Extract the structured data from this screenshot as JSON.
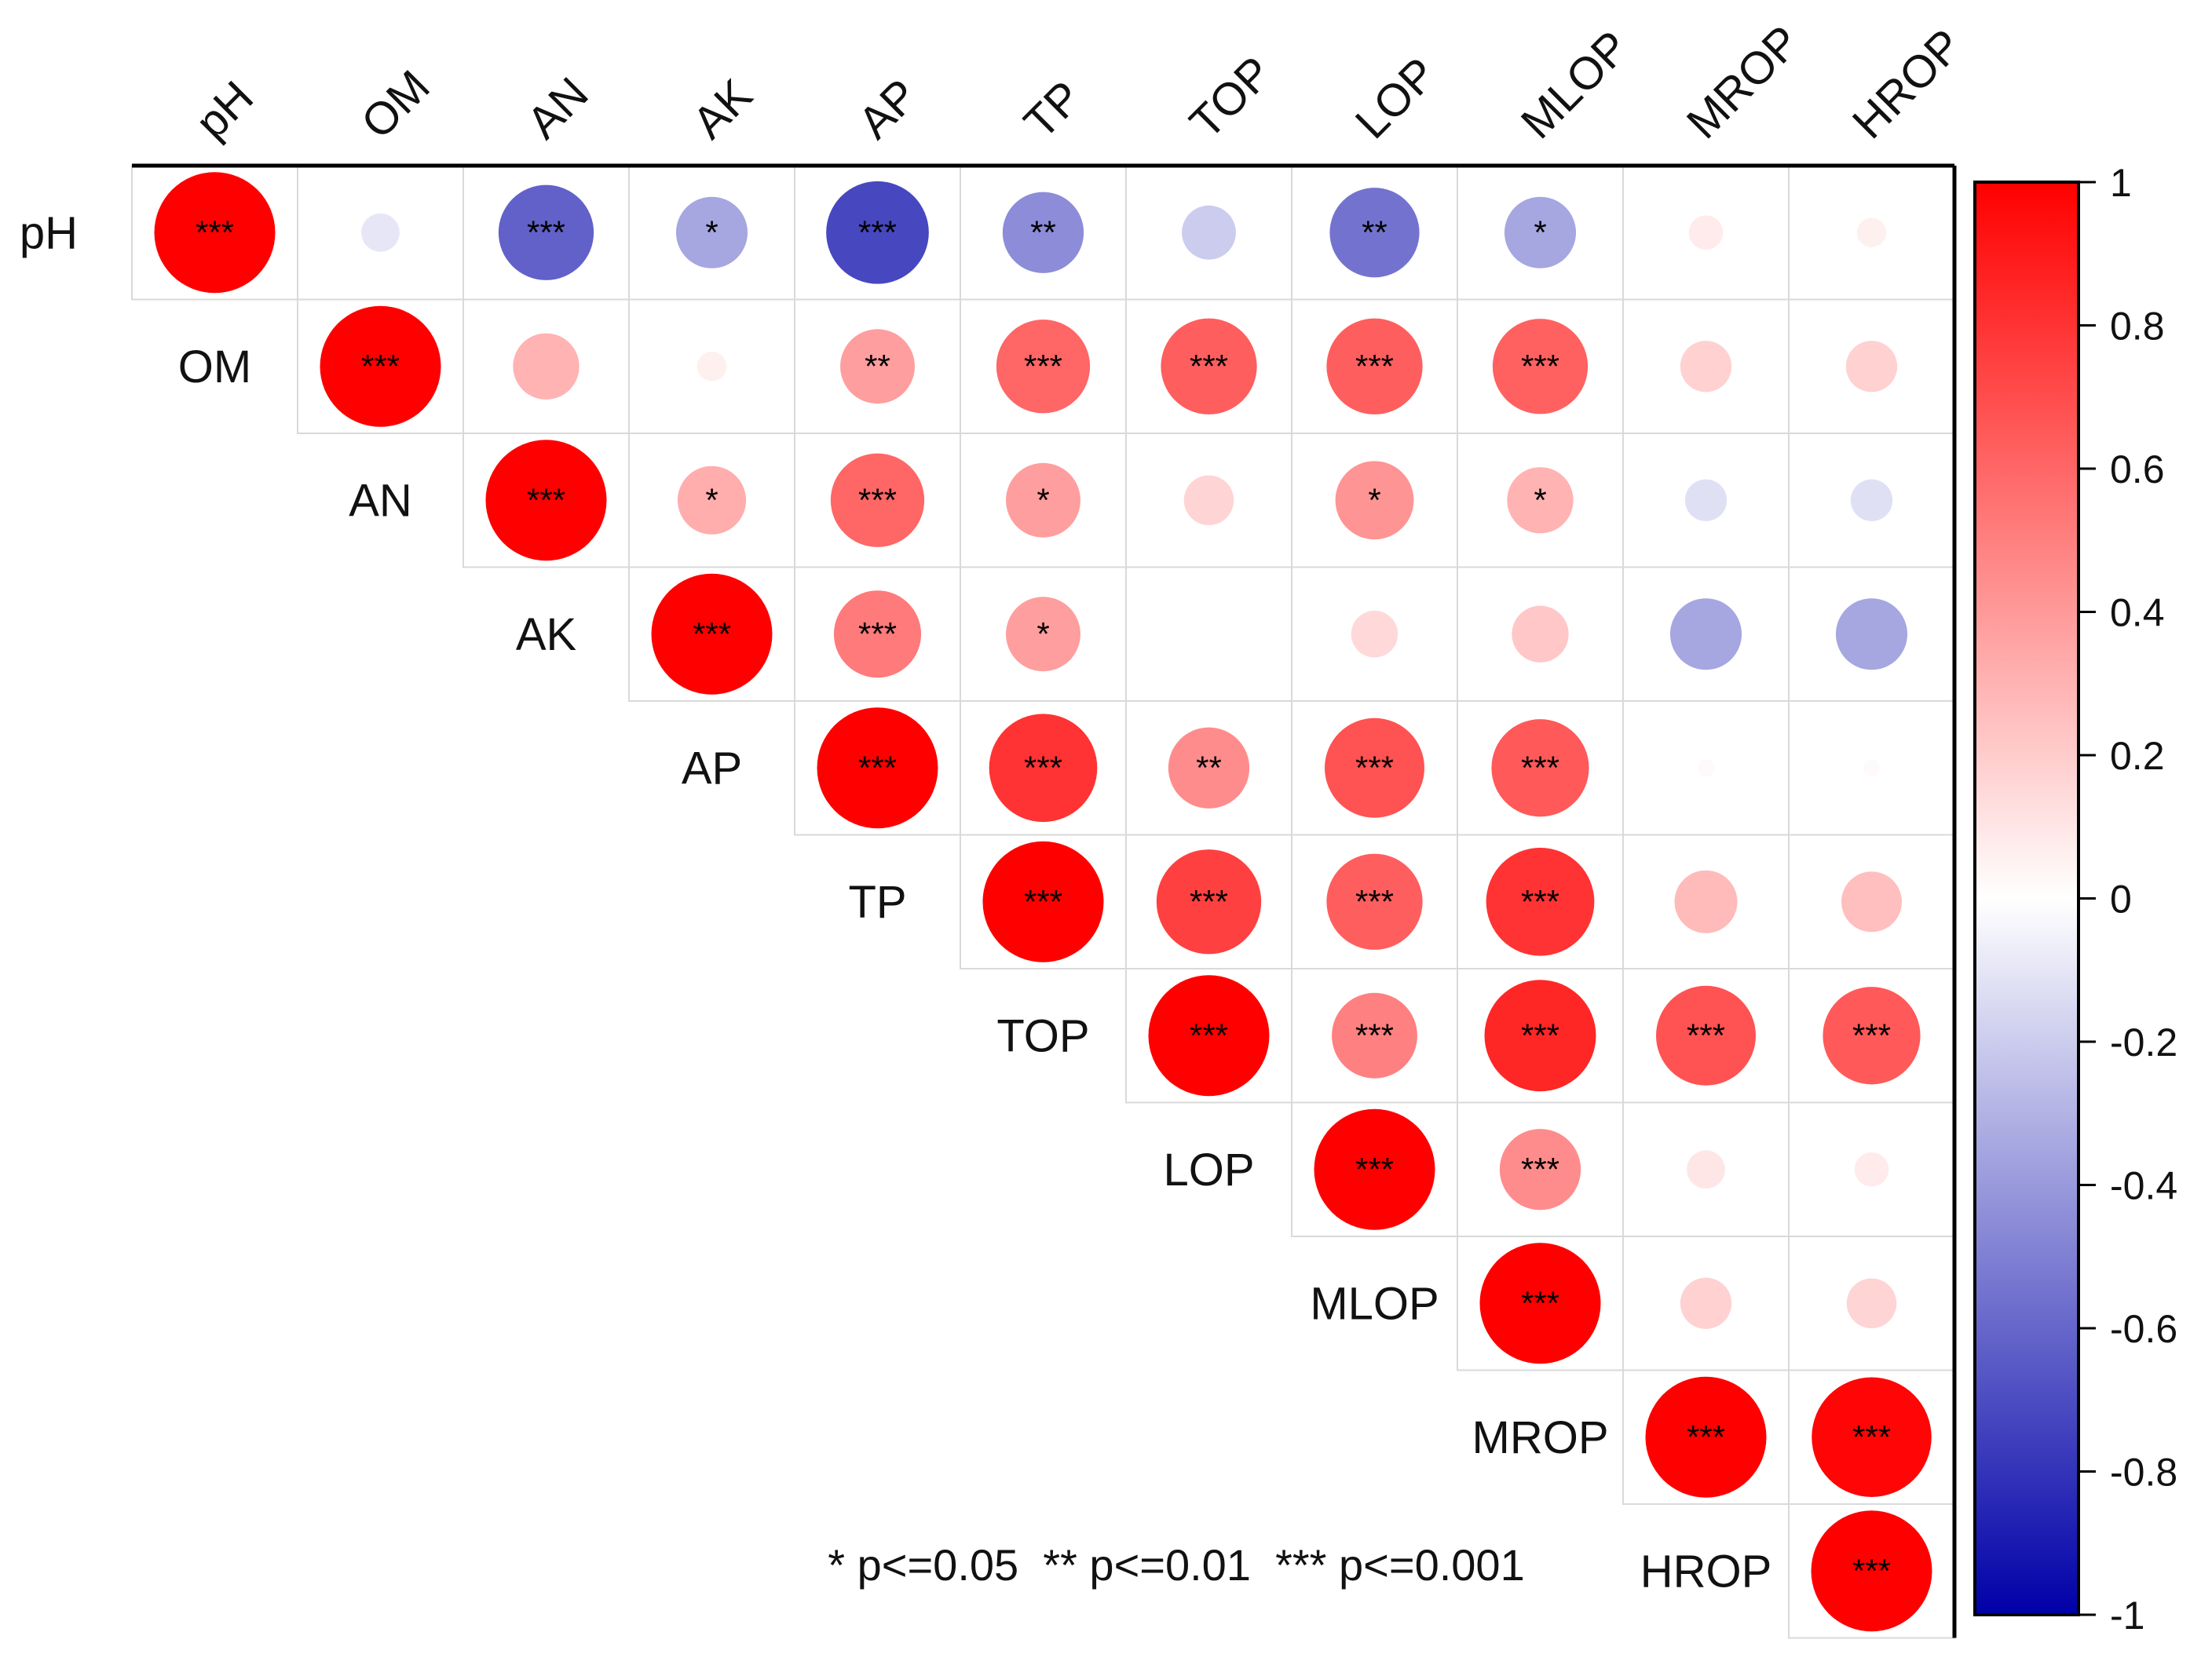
{
  "chart_data": {
    "type": "heatmap",
    "subtype": "correlation-upper-triangle-circles",
    "variables": [
      "pH",
      "OM",
      "AN",
      "AK",
      "AP",
      "TP",
      "TOP",
      "LOP",
      "MLOP",
      "MROP",
      "HROP"
    ],
    "correlations": [
      [
        1.0,
        -0.1,
        -0.62,
        -0.35,
        -0.72,
        -0.45,
        -0.2,
        -0.55,
        -0.35,
        0.08,
        0.06
      ],
      [
        null,
        1.0,
        0.3,
        0.06,
        0.38,
        0.6,
        0.63,
        0.63,
        0.62,
        0.18,
        0.18
      ],
      [
        null,
        null,
        1.0,
        0.32,
        0.6,
        0.38,
        0.17,
        0.42,
        0.3,
        -0.12,
        -0.12
      ],
      [
        null,
        null,
        null,
        1.0,
        0.52,
        0.38,
        0.0,
        0.15,
        0.22,
        -0.35,
        -0.35
      ],
      [
        null,
        null,
        null,
        null,
        1.0,
        0.8,
        0.45,
        0.68,
        0.65,
        0.02,
        0.02
      ],
      [
        null,
        null,
        null,
        null,
        null,
        1.0,
        0.75,
        0.63,
        0.8,
        0.27,
        0.25
      ],
      [
        null,
        null,
        null,
        null,
        null,
        null,
        1.0,
        0.5,
        0.85,
        0.68,
        0.65
      ],
      [
        null,
        null,
        null,
        null,
        null,
        null,
        null,
        1.0,
        0.45,
        0.1,
        0.08
      ],
      [
        null,
        null,
        null,
        null,
        null,
        null,
        null,
        null,
        1.0,
        0.18,
        0.17
      ],
      [
        null,
        null,
        null,
        null,
        null,
        null,
        null,
        null,
        null,
        1.0,
        0.98
      ],
      [
        null,
        null,
        null,
        null,
        null,
        null,
        null,
        null,
        null,
        null,
        1.0
      ]
    ],
    "significance": [
      [
        "***",
        "",
        "***",
        "*",
        "***",
        "**",
        "",
        "**",
        "*",
        "",
        ""
      ],
      [
        "",
        "***",
        "",
        "",
        "**",
        "***",
        "***",
        "***",
        "***",
        "",
        ""
      ],
      [
        "",
        "",
        "***",
        "*",
        "***",
        "*",
        "",
        "*",
        "*",
        "",
        ""
      ],
      [
        "",
        "",
        "",
        "***",
        "***",
        "*",
        "",
        "",
        "",
        "",
        ""
      ],
      [
        "",
        "",
        "",
        "",
        "***",
        "***",
        "**",
        "***",
        "***",
        "",
        ""
      ],
      [
        "",
        "",
        "",
        "",
        "",
        "***",
        "***",
        "***",
        "***",
        "",
        ""
      ],
      [
        "",
        "",
        "",
        "",
        "",
        "",
        "***",
        "***",
        "***",
        "***",
        "***"
      ],
      [
        "",
        "",
        "",
        "",
        "",
        "",
        "",
        "***",
        "***",
        "",
        ""
      ],
      [
        "",
        "",
        "",
        "",
        "",
        "",
        "",
        "",
        "***",
        "",
        ""
      ],
      [
        "",
        "",
        "",
        "",
        "",
        "",
        "",
        "",
        "",
        "***",
        "***"
      ],
      [
        "",
        "",
        "",
        "",
        "",
        "",
        "",
        "",
        "",
        "",
        "***"
      ]
    ],
    "colorbar": {
      "ticks": [
        "1",
        "0.8",
        "0.6",
        "0.4",
        "0.2",
        "0",
        "-0.2",
        "-0.4",
        "-0.6",
        "-0.8",
        "-1"
      ],
      "range": [
        -1,
        1
      ],
      "color_negative": "#0000a8",
      "color_zero": "#ffffff",
      "color_positive": "#ff0000"
    },
    "legend_text": "* p<=0.05  ** p<=0.01  *** p<=0.001"
  }
}
